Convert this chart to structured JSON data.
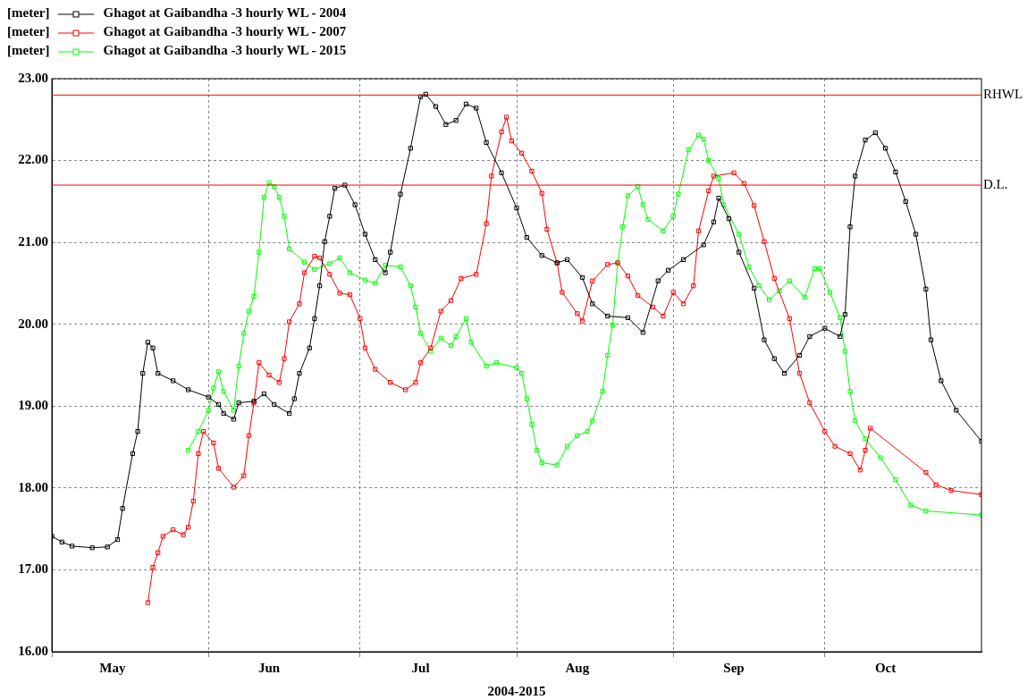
{
  "chart_data": {
    "type": "line",
    "xlabel": "2004-2015",
    "ylabel": "[meter]",
    "legend": "top left",
    "grid": true,
    "marker": "square",
    "line_style": "solid",
    "xlim": [
      "--05-01",
      "--11-01"
    ],
    "xticks": [
      {
        "value": "--05-01",
        "label": null
      },
      {
        "value": "--05-13",
        "label": "May"
      },
      {
        "value": "--06-01",
        "label": null
      },
      {
        "value": "--06-13",
        "label": "Jun"
      },
      {
        "value": "--07-01",
        "label": null
      },
      {
        "value": "--07-13",
        "label": "Jul"
      },
      {
        "value": "--08-01",
        "label": null
      },
      {
        "value": "--08-13",
        "label": "Aug"
      },
      {
        "value": "--09-01",
        "label": null
      },
      {
        "value": "--09-13",
        "label": "Sep"
      },
      {
        "value": "--10-01",
        "label": null
      },
      {
        "value": "--10-13",
        "label": "Oct"
      }
    ],
    "ylim": [
      16,
      23
    ],
    "yticks": [
      {
        "value": 16,
        "label": "16.00"
      },
      {
        "value": 17,
        "label": "17.00"
      },
      {
        "value": 18,
        "label": "18.00"
      },
      {
        "value": 19,
        "label": "19.00"
      },
      {
        "value": 20,
        "label": "20.00"
      },
      {
        "value": 21,
        "label": "21.00"
      },
      {
        "value": 22,
        "label": "22.00"
      },
      {
        "value": 23,
        "label": "23.00"
      }
    ],
    "ref_lines": [
      {
        "axis": "y",
        "value": 22.8,
        "label": "RHWL",
        "color": "#ff0000"
      },
      {
        "axis": "y",
        "value": 21.7,
        "label": "D.L.",
        "color": "#ff0000"
      }
    ],
    "series": [
      {
        "name": "Ghagot at Gaibandha -3 hourly WL - 2004",
        "color": "#000000",
        "x": [
          "--05-01",
          "--05-03",
          "--05-05",
          "--05-09",
          "--05-12",
          "--05-14",
          "--05-15",
          "--05-17",
          "--05-18",
          "--05-19",
          "--05-20",
          "--05-21",
          "--05-22",
          "--05-25",
          "--05-28",
          "--06-01",
          "--06-03",
          "--06-04",
          "--06-06",
          "--06-07",
          "--06-10",
          "--06-12",
          "--06-14",
          "--06-17",
          "--06-18",
          "--06-19",
          "--06-21",
          "--06-22",
          "--06-23",
          "--06-24",
          "--06-25",
          "--06-26",
          "--06-28",
          "--06-30",
          "--07-02",
          "--07-04",
          "--07-06",
          "--07-07",
          "--07-09",
          "--07-11",
          "--07-13",
          "--07-14",
          "--07-16",
          "--07-18",
          "--07-20",
          "--07-22",
          "--07-24",
          "--07-26",
          "--07-29",
          "--08-01",
          "--08-03",
          "--08-06",
          "--08-09",
          "--08-11",
          "--08-14",
          "--08-16",
          "--08-19",
          "--08-23",
          "--08-26",
          "--08-29",
          "--08-31",
          "--09-03",
          "--09-07",
          "--09-09",
          "--09-10",
          "--09-12",
          "--09-14",
          "--09-17",
          "--09-19",
          "--09-21",
          "--09-23",
          "--09-26",
          "--09-28",
          "--10-01",
          "--10-04",
          "--10-05",
          "--10-06",
          "--10-07",
          "--10-09",
          "--10-11",
          "--10-13",
          "--10-15",
          "--10-17",
          "--10-19",
          "--10-21",
          "--10-22",
          "--10-24",
          "--10-27",
          "--11-01"
        ],
        "values": [
          17.41,
          17.34,
          17.29,
          17.27,
          17.28,
          17.37,
          17.75,
          18.42,
          18.69,
          19.4,
          19.78,
          19.71,
          19.4,
          19.31,
          19.2,
          19.11,
          19.02,
          18.91,
          18.84,
          19.04,
          19.06,
          19.15,
          19.02,
          18.91,
          19.09,
          19.4,
          19.71,
          20.07,
          20.47,
          21.01,
          21.32,
          21.66,
          21.7,
          21.46,
          21.1,
          20.79,
          20.63,
          20.88,
          21.59,
          22.15,
          22.78,
          22.81,
          22.66,
          22.44,
          22.49,
          22.69,
          22.64,
          22.22,
          21.85,
          21.42,
          21.06,
          20.84,
          20.75,
          20.79,
          20.57,
          20.25,
          20.1,
          20.08,
          19.9,
          20.53,
          20.66,
          20.79,
          20.97,
          21.25,
          21.54,
          21.29,
          20.88,
          20.44,
          19.81,
          19.58,
          19.4,
          19.62,
          19.85,
          19.95,
          19.85,
          20.12,
          21.19,
          21.81,
          22.25,
          22.34,
          22.15,
          21.86,
          21.5,
          21.1,
          20.43,
          19.81,
          19.31,
          18.95,
          18.57
        ]
      },
      {
        "name": "Ghagot at Gaibandha -3 hourly WL - 2007",
        "color": "#ff0000",
        "x": [
          "--05-20",
          "--05-21",
          "--05-22",
          "--05-23",
          "--05-25",
          "--05-27",
          "--05-28",
          "--05-29",
          "--05-30",
          "--05-31",
          "--06-02",
          "--06-03",
          "--06-06",
          "--06-08",
          "--06-09",
          "--06-10",
          "--06-11",
          "--06-13",
          "--06-15",
          "--06-16",
          "--06-17",
          "--06-19",
          "--06-20",
          "--06-22",
          "--06-23",
          "--06-25",
          "--06-27",
          "--06-29",
          "--07-01",
          "--07-02",
          "--07-04",
          "--07-07",
          "--07-10",
          "--07-12",
          "--07-13",
          "--07-15",
          "--07-17",
          "--07-19",
          "--07-21",
          "--07-24",
          "--07-26",
          "--07-27",
          "--07-29",
          "--07-30",
          "--07-31",
          "--08-02",
          "--08-04",
          "--08-06",
          "--08-07",
          "--08-09",
          "--08-10",
          "--08-13",
          "--08-14",
          "--08-16",
          "--08-19",
          "--08-21",
          "--08-23",
          "--08-25",
          "--08-28",
          "--08-30",
          "--09-01",
          "--09-03",
          "--09-05",
          "--09-06",
          "--09-08",
          "--09-09",
          "--09-13",
          "--09-15",
          "--09-17",
          "--09-19",
          "--09-21",
          "--09-24",
          "--09-26",
          "--09-28",
          "--10-01",
          "--10-03",
          "--10-06",
          "--10-08",
          "--10-09",
          "--10-10",
          "--10-21",
          "--10-23",
          "--10-26",
          "--11-01"
        ],
        "values": [
          16.6,
          17.03,
          17.21,
          17.41,
          17.49,
          17.43,
          17.52,
          17.84,
          18.42,
          18.69,
          18.55,
          18.24,
          18.01,
          18.15,
          18.64,
          19.04,
          19.53,
          19.38,
          19.29,
          19.58,
          20.03,
          20.25,
          20.63,
          20.83,
          20.81,
          20.61,
          20.38,
          20.36,
          20.07,
          19.71,
          19.45,
          19.29,
          19.2,
          19.29,
          19.53,
          19.71,
          20.16,
          20.29,
          20.56,
          20.61,
          21.23,
          21.81,
          22.35,
          22.53,
          22.24,
          22.09,
          21.87,
          21.6,
          21.16,
          20.75,
          20.39,
          20.13,
          20.04,
          20.53,
          20.73,
          20.75,
          20.59,
          20.35,
          20.21,
          20.1,
          20.39,
          20.25,
          20.47,
          21.14,
          21.63,
          21.81,
          21.85,
          21.72,
          21.45,
          21.01,
          20.56,
          20.07,
          19.4,
          19.04,
          18.69,
          18.51,
          18.42,
          18.22,
          18.46,
          18.73,
          18.19,
          18.04,
          17.97,
          17.92
        ]
      },
      {
        "name": "Ghagot at Gaibandha -3 hourly WL - 2015",
        "color": "#00ff00",
        "x": [
          "--05-28",
          "--05-30",
          "--06-01",
          "--06-02",
          "--06-03",
          "--06-04",
          "--06-06",
          "--06-07",
          "--06-08",
          "--06-09",
          "--06-10",
          "--06-11",
          "--06-12",
          "--06-13",
          "--06-14",
          "--06-15",
          "--06-16",
          "--06-17",
          "--06-20",
          "--06-22",
          "--06-25",
          "--06-27",
          "--06-29",
          "--07-02",
          "--07-04",
          "--07-06",
          "--07-09",
          "--07-11",
          "--07-12",
          "--07-13",
          "--07-15",
          "--07-17",
          "--07-19",
          "--07-20",
          "--07-22",
          "--07-23",
          "--07-26",
          "--07-28",
          "--08-01",
          "--08-02",
          "--08-03",
          "--08-04",
          "--08-05",
          "--08-06",
          "--08-09",
          "--08-11",
          "--08-13",
          "--08-15",
          "--08-16",
          "--08-18",
          "--08-19",
          "--08-20",
          "--08-21",
          "--08-22",
          "--08-23",
          "--08-25",
          "--08-26",
          "--08-27",
          "--08-30",
          "--09-01",
          "--09-02",
          "--09-04",
          "--09-06",
          "--09-07",
          "--09-08",
          "--09-10",
          "--09-11",
          "--09-14",
          "--09-16",
          "--09-18",
          "--09-20",
          "--09-22",
          "--09-24",
          "--09-27",
          "--09-29",
          "--09-30",
          "--10-02",
          "--10-04",
          "--10-05",
          "--10-06",
          "--10-07",
          "--10-09",
          "--10-12",
          "--10-15",
          "--10-18",
          "--10-21",
          "--11-01"
        ],
        "values": [
          18.46,
          18.69,
          18.95,
          19.22,
          19.42,
          19.18,
          18.95,
          19.49,
          19.89,
          20.16,
          20.34,
          20.88,
          21.55,
          21.73,
          21.68,
          21.55,
          21.32,
          20.92,
          20.76,
          20.67,
          20.74,
          20.81,
          20.63,
          20.54,
          20.5,
          20.72,
          20.7,
          20.47,
          20.21,
          19.89,
          19.67,
          19.83,
          19.74,
          19.85,
          20.07,
          19.78,
          19.49,
          19.53,
          19.47,
          19.4,
          19.09,
          18.78,
          18.46,
          18.31,
          18.28,
          18.51,
          18.64,
          18.69,
          18.82,
          19.18,
          19.62,
          19.99,
          20.75,
          21.19,
          21.57,
          21.68,
          21.46,
          21.28,
          21.14,
          21.32,
          21.59,
          22.13,
          22.31,
          22.26,
          22,
          21.78,
          21.46,
          21.1,
          20.7,
          20.47,
          20.3,
          20.41,
          20.53,
          20.33,
          20.68,
          20.68,
          20.39,
          20.08,
          19.67,
          19.18,
          18.82,
          18.6,
          18.37,
          18.1,
          17.79,
          17.72,
          17.67
        ]
      }
    ]
  }
}
